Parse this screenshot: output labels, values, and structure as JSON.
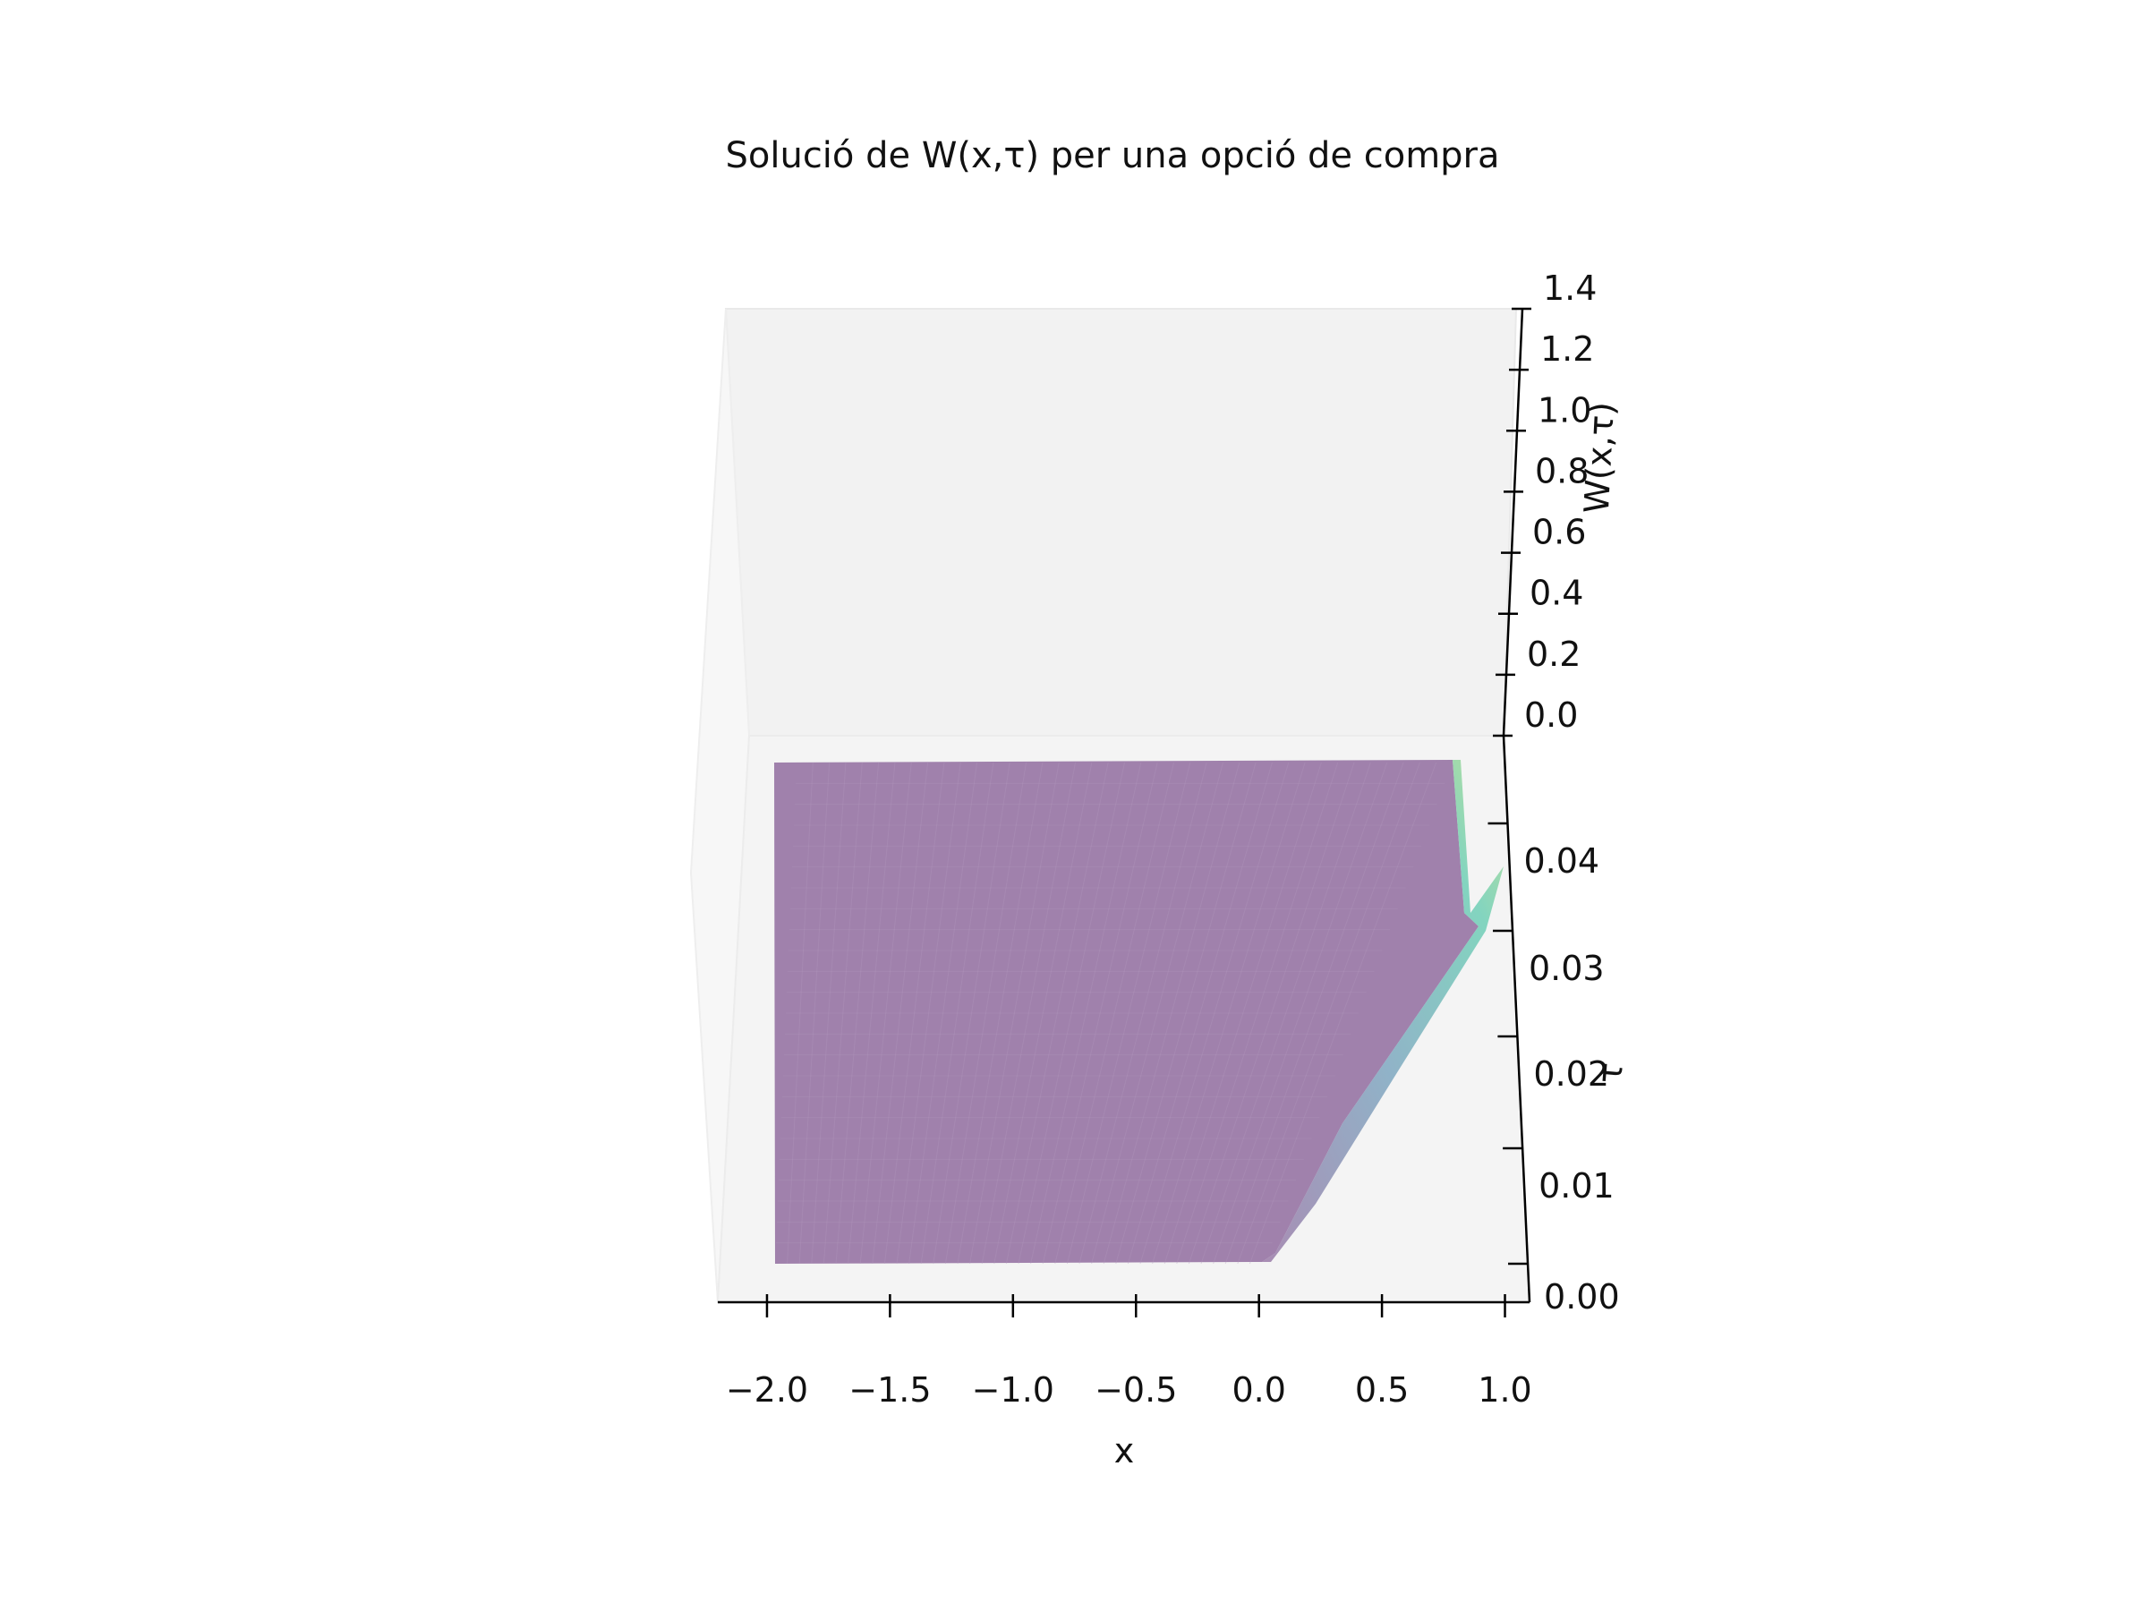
{
  "chart_data": {
    "type": "surface",
    "title": "Solució de W(x,τ) per una opció de compra",
    "xlabel": "x",
    "ylabel": "τ",
    "zlabel": "W(x,τ)",
    "x_ticks": [
      "−2.0",
      "−1.5",
      "−1.0",
      "−0.5",
      "0.0",
      "0.5",
      "1.0"
    ],
    "tau_ticks": [
      "0.00",
      "0.01",
      "0.02",
      "0.03",
      "0.04"
    ],
    "z_ticks": [
      "0.0",
      "0.2",
      "0.4",
      "0.6",
      "0.8",
      "1.0",
      "1.2",
      "1.4"
    ],
    "xlim": [
      -2.2,
      1.1
    ],
    "taulim": [
      0,
      0.05
    ],
    "zlim": [
      0,
      1.4
    ],
    "grid": false,
    "colormap": "viridis",
    "surface_alpha": 0.5,
    "surface_samples": [
      {
        "x": -2.0,
        "tau": 0.0,
        "W": 0.0
      },
      {
        "x": 0.0,
        "tau": 0.0,
        "W": 0.0
      },
      {
        "x": 0.5,
        "tau": 0.0,
        "W": 0.65
      },
      {
        "x": 0.8,
        "tau": 0.0,
        "W": 1.23
      },
      {
        "x": 0.8,
        "tau": 0.045,
        "W": 1.23
      },
      {
        "x": -2.0,
        "tau": 0.045,
        "W": 0.0
      }
    ]
  }
}
